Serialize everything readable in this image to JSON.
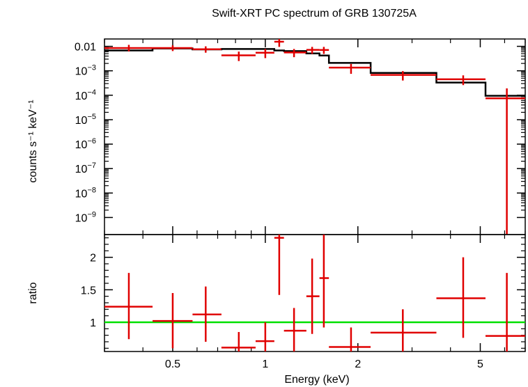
{
  "chart_data": [
    {
      "type": "scatter",
      "panel": "spectrum",
      "title": "Swift-XRT PC spectrum of GRB 130725A",
      "xlabel": "Energy (keV)",
      "ylabel": "counts s⁻¹ keV⁻¹",
      "x_scale": "log",
      "y_scale": "log",
      "xlim": [
        0.3,
        7.0
      ],
      "ylim": [
        2e-10,
        0.02
      ],
      "x_ticks": [
        0.5,
        1,
        2,
        5
      ],
      "y_ticks": [
        {
          "value": 0.01,
          "label": "0.01"
        },
        {
          "value": 0.001,
          "mant": "10",
          "exp": "−3"
        },
        {
          "value": 0.0001,
          "mant": "10",
          "exp": "−4"
        },
        {
          "value": 1e-05,
          "mant": "10",
          "exp": "−5"
        },
        {
          "value": 1e-06,
          "mant": "10",
          "exp": "−6"
        },
        {
          "value": 1e-07,
          "mant": "10",
          "exp": "−7"
        },
        {
          "value": 1e-08,
          "mant": "10",
          "exp": "−8"
        },
        {
          "value": 1e-09,
          "mant": "10",
          "exp": "−9"
        }
      ],
      "series": [
        {
          "kind": "data",
          "color": "#e00000",
          "points": [
            {
              "x": 0.36,
              "xlo": 0.3,
              "xhi": 0.43,
              "y": 0.0085,
              "ylo": 0.0062,
              "yhi": 0.0115
            },
            {
              "x": 0.5,
              "xlo": 0.43,
              "xhi": 0.58,
              "y": 0.0085,
              "ylo": 0.0064,
              "yhi": 0.011
            },
            {
              "x": 0.64,
              "xlo": 0.58,
              "xhi": 0.72,
              "y": 0.0076,
              "ylo": 0.0055,
              "yhi": 0.01
            },
            {
              "x": 0.82,
              "xlo": 0.72,
              "xhi": 0.93,
              "y": 0.0043,
              "ylo": 0.0025,
              "yhi": 0.0061
            },
            {
              "x": 1.0,
              "xlo": 0.93,
              "xhi": 1.07,
              "y": 0.0055,
              "ylo": 0.0033,
              "yhi": 0.0078
            },
            {
              "x": 1.11,
              "xlo": 1.07,
              "xhi": 1.15,
              "y": 0.0155,
              "ylo": 0.0095,
              "yhi": 0.0215
            },
            {
              "x": 1.24,
              "xlo": 1.15,
              "xhi": 1.36,
              "y": 0.0056,
              "ylo": 0.0036,
              "yhi": 0.0078
            },
            {
              "x": 1.42,
              "xlo": 1.36,
              "xhi": 1.5,
              "y": 0.0072,
              "ylo": 0.0049,
              "yhi": 0.0095
            },
            {
              "x": 1.55,
              "xlo": 1.5,
              "xhi": 1.61,
              "y": 0.0071,
              "ylo": 0.0049,
              "yhi": 0.0095
            },
            {
              "x": 1.9,
              "xlo": 1.61,
              "xhi": 2.2,
              "y": 0.00135,
              "ylo": 0.00075,
              "yhi": 0.0019
            },
            {
              "x": 2.8,
              "xlo": 2.2,
              "xhi": 3.6,
              "y": 0.00068,
              "ylo": 0.0004,
              "yhi": 0.00097
            },
            {
              "x": 4.4,
              "xlo": 3.6,
              "xhi": 5.2,
              "y": 0.00045,
              "ylo": 0.00026,
              "yhi": 0.00065
            },
            {
              "x": 6.1,
              "xlo": 5.2,
              "xhi": 7.0,
              "y": 7.5e-05,
              "ylo": 2e-10,
              "yhi": 0.00019
            }
          ]
        },
        {
          "kind": "model",
          "color": "#000000",
          "steps": [
            {
              "xlo": 0.3,
              "xhi": 0.43,
              "y": 0.0068
            },
            {
              "xlo": 0.43,
              "xhi": 0.58,
              "y": 0.0082
            },
            {
              "xlo": 0.58,
              "xhi": 0.72,
              "y": 0.0075
            },
            {
              "xlo": 0.72,
              "xhi": 0.93,
              "y": 0.0078
            },
            {
              "xlo": 0.93,
              "xhi": 1.07,
              "y": 0.0078
            },
            {
              "xlo": 1.07,
              "xhi": 1.15,
              "y": 0.0068
            },
            {
              "xlo": 1.15,
              "xhi": 1.36,
              "y": 0.0064
            },
            {
              "xlo": 1.36,
              "xhi": 1.5,
              "y": 0.0051
            },
            {
              "xlo": 1.5,
              "xhi": 1.61,
              "y": 0.0042
            },
            {
              "xlo": 1.61,
              "xhi": 2.2,
              "y": 0.0021
            },
            {
              "xlo": 2.2,
              "xhi": 3.6,
              "y": 0.00082
            },
            {
              "xlo": 3.6,
              "xhi": 5.2,
              "y": 0.00033
            },
            {
              "xlo": 5.2,
              "xhi": 7.0,
              "y": 9.5e-05
            }
          ]
        }
      ]
    },
    {
      "type": "scatter",
      "panel": "ratio",
      "xlabel": "Energy (keV)",
      "ylabel": "ratio",
      "x_scale": "log",
      "xlim": [
        0.3,
        7.0
      ],
      "ylim": [
        0.55,
        2.35
      ],
      "x_ticks": [
        0.5,
        1,
        2,
        5
      ],
      "y_ticks": [
        {
          "value": 1,
          "label": "1"
        },
        {
          "value": 1.5,
          "label": "1.5"
        },
        {
          "value": 2,
          "label": "2"
        }
      ],
      "reference_line": {
        "y": 1,
        "color": "#00e000"
      },
      "series": [
        {
          "kind": "data",
          "color": "#e00000",
          "points": [
            {
              "x": 0.36,
              "xlo": 0.3,
              "xhi": 0.43,
              "y": 1.24,
              "ylo": 0.74,
              "yhi": 1.76
            },
            {
              "x": 0.5,
              "xlo": 0.43,
              "xhi": 0.58,
              "y": 1.02,
              "ylo": 0.6,
              "yhi": 1.45
            },
            {
              "x": 0.64,
              "xlo": 0.58,
              "xhi": 0.72,
              "y": 1.12,
              "ylo": 0.7,
              "yhi": 1.55
            },
            {
              "x": 0.82,
              "xlo": 0.72,
              "xhi": 0.93,
              "y": 0.61,
              "ylo": 0.55,
              "yhi": 0.85
            },
            {
              "x": 1.0,
              "xlo": 0.93,
              "xhi": 1.07,
              "y": 0.71,
              "ylo": 0.55,
              "yhi": 1.0
            },
            {
              "x": 1.11,
              "xlo": 1.07,
              "xhi": 1.15,
              "y": 2.3,
              "ylo": 1.42,
              "yhi": 2.35
            },
            {
              "x": 1.24,
              "xlo": 1.15,
              "xhi": 1.36,
              "y": 0.87,
              "ylo": 0.55,
              "yhi": 1.22
            },
            {
              "x": 1.42,
              "xlo": 1.36,
              "xhi": 1.5,
              "y": 1.4,
              "ylo": 0.82,
              "yhi": 1.98
            },
            {
              "x": 1.55,
              "xlo": 1.5,
              "xhi": 1.61,
              "y": 1.68,
              "ylo": 0.92,
              "yhi": 2.35
            },
            {
              "x": 1.9,
              "xlo": 1.61,
              "xhi": 2.2,
              "y": 0.62,
              "ylo": 0.55,
              "yhi": 0.92
            },
            {
              "x": 2.8,
              "xlo": 2.2,
              "xhi": 3.6,
              "y": 0.84,
              "ylo": 0.55,
              "yhi": 1.2
            },
            {
              "x": 4.4,
              "xlo": 3.6,
              "xhi": 5.2,
              "y": 1.37,
              "ylo": 0.76,
              "yhi": 2.0
            },
            {
              "x": 6.1,
              "xlo": 5.2,
              "xhi": 7.0,
              "y": 0.79,
              "ylo": 0.55,
              "yhi": 1.76
            }
          ]
        }
      ]
    }
  ]
}
